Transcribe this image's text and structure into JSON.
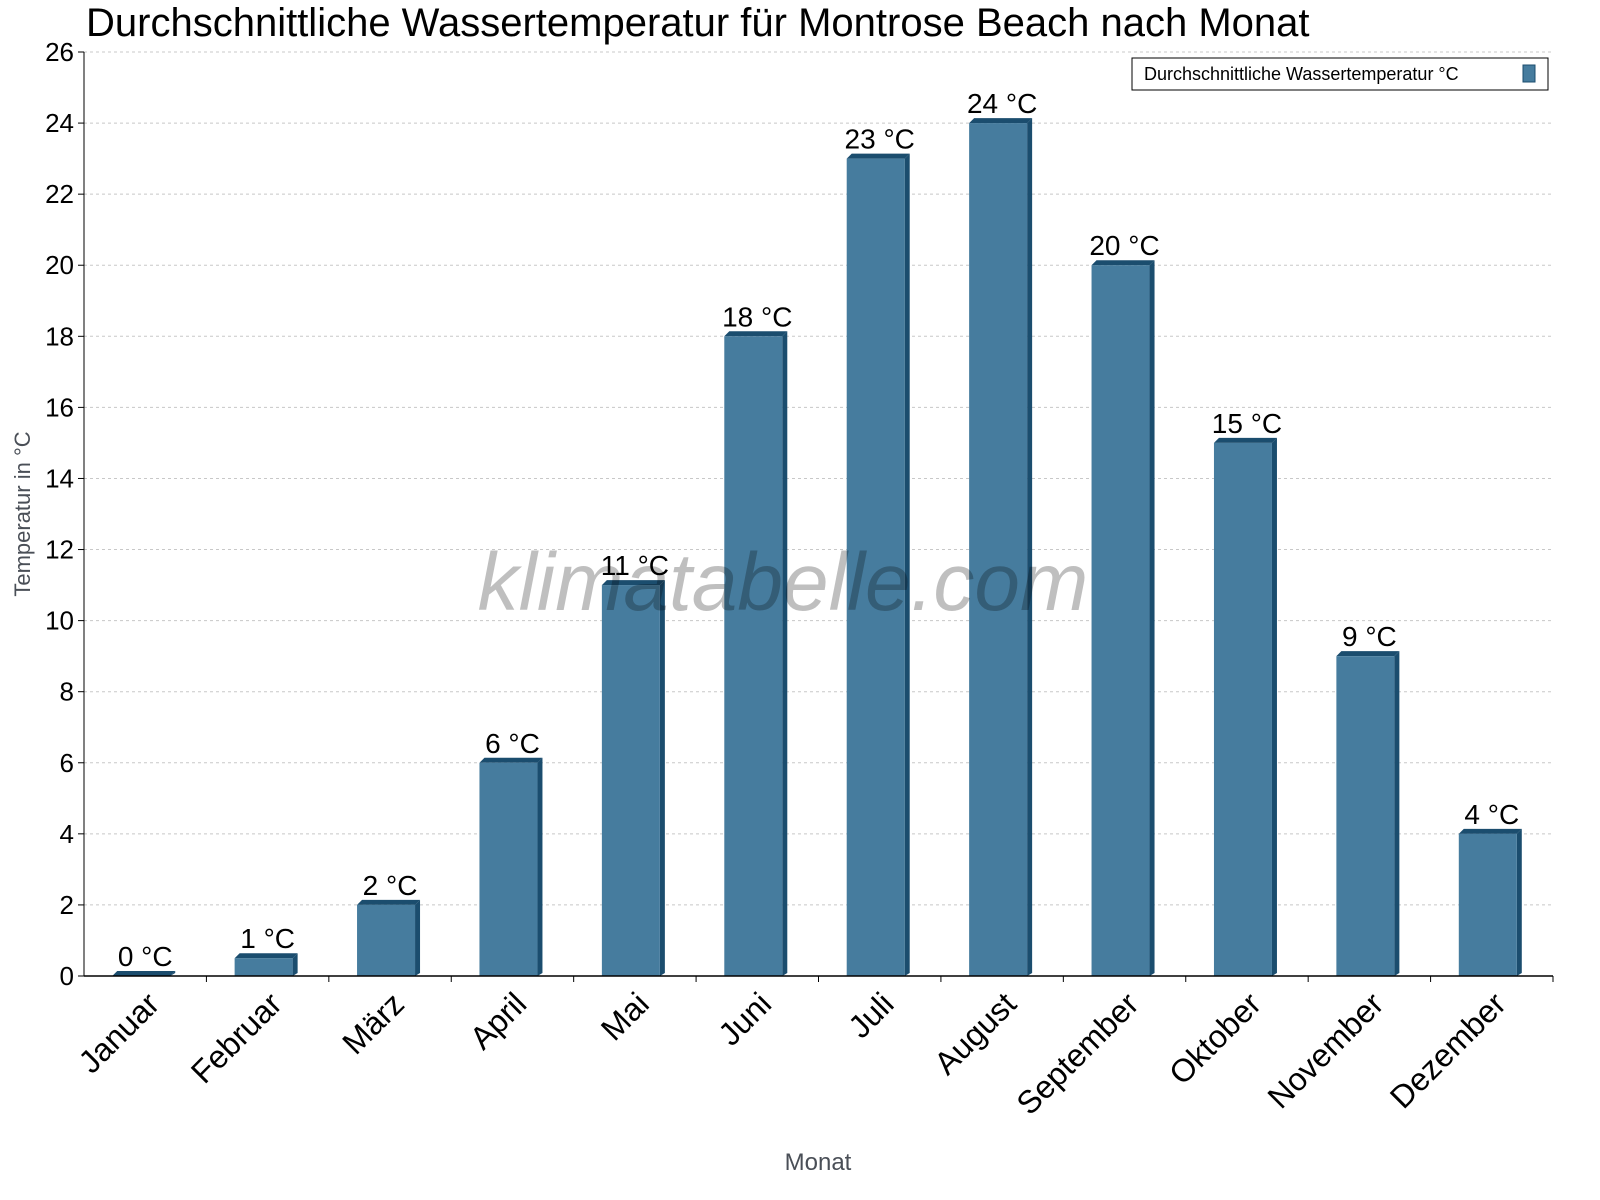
{
  "chart_data": {
    "type": "bar",
    "title": "Durchschnittliche Wassertemperatur für Montrose Beach nach Monat",
    "xlabel": "Monat",
    "ylabel": "Temperatur in °C",
    "categories": [
      "Januar",
      "Februar",
      "März",
      "April",
      "Mai",
      "Juni",
      "Juli",
      "August",
      "September",
      "Oktober",
      "November",
      "Dezember"
    ],
    "series": [
      {
        "name": "Durchschnittliche Wassertemperatur °C",
        "values": [
          0,
          0.5,
          2,
          6,
          11,
          18,
          23,
          24,
          20,
          15,
          9,
          4
        ],
        "data_labels": [
          "0 °C",
          "1 °C",
          "2 °C",
          "6 °C",
          "11 °C",
          "18 °C",
          "23 °C",
          "24 °C",
          "20 °C",
          "15 °C",
          "9 °C",
          "4 °C"
        ]
      }
    ],
    "ylim": [
      0,
      26
    ],
    "yticks": [
      0,
      2,
      4,
      6,
      8,
      10,
      12,
      14,
      16,
      18,
      20,
      22,
      24,
      26
    ],
    "grid": true,
    "legend": "top-right",
    "colors": {
      "bar": "#467c9e",
      "bar_side": "#1b4d6e",
      "grid": "#c8c8c8"
    }
  },
  "watermark": "klimatabelle.com"
}
